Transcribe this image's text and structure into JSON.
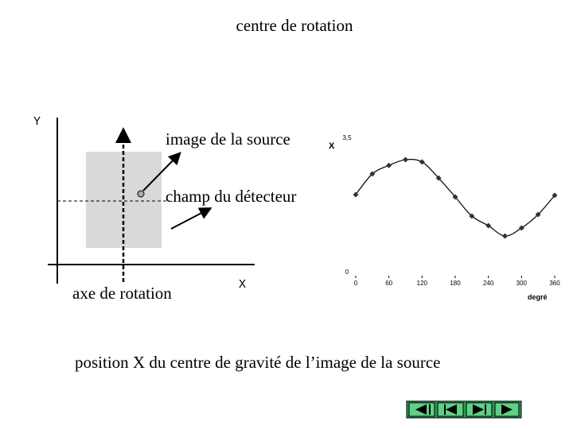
{
  "title": "centre de rotation",
  "diagram": {
    "y_axis": "Y",
    "x_axis": "X",
    "source_label": "image de la source",
    "detector_label": "champ du détecteur",
    "rotation_axis_label": "axe de rotation"
  },
  "caption": "position X du centre de gravité de l’image de la source",
  "chart_data": {
    "type": "scatter",
    "ylabel": "X",
    "xlabel": "degré",
    "x": [
      0,
      30,
      60,
      90,
      120,
      150,
      180,
      210,
      240,
      270,
      300,
      330,
      360
    ],
    "series": [
      {
        "color": "#333333",
        "values": [
          2.01,
          2.55,
          2.77,
          2.92,
          2.86,
          2.44,
          1.95,
          1.45,
          1.2,
          0.93,
          1.14,
          1.49,
          1.99
        ]
      }
    ],
    "xlim": [
      0,
      360
    ],
    "xticks": [
      0,
      60,
      120,
      180,
      240,
      300,
      360
    ],
    "ylim": [
      0,
      3.5
    ],
    "yticks": [
      0,
      {
        "value": 3.5,
        "label": "3,5"
      }
    ]
  }
}
